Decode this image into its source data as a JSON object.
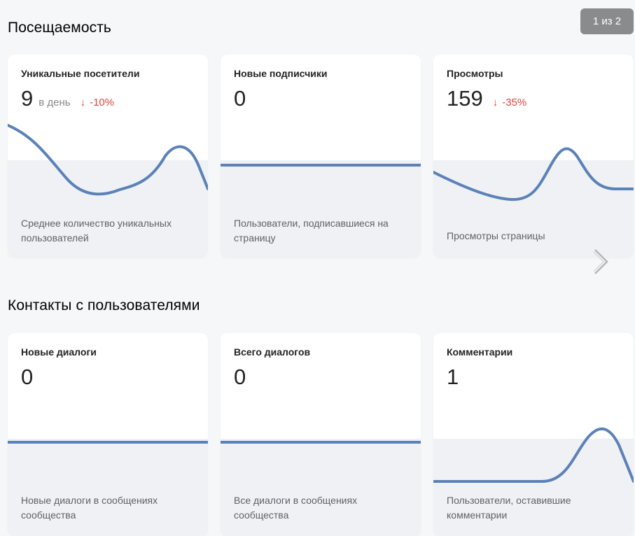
{
  "pager": {
    "text": "1 из 2"
  },
  "sections": [
    {
      "title": "Посещаемость",
      "cards": [
        {
          "label": "Уникальные посетители",
          "value": "9",
          "unit": "в день",
          "change": "-10%",
          "description": "Среднее количество уникальных пользователей"
        },
        {
          "label": "Новые подписчики",
          "value": "0",
          "description": "Пользователи, подписавшиеся на страницу"
        },
        {
          "label": "Просмотры",
          "value": "159",
          "change": "-35%",
          "description": "Просмотры страницы"
        }
      ]
    },
    {
      "title": "Контакты с пользователями",
      "cards": [
        {
          "label": "Новые диалоги",
          "value": "0",
          "description": "Новые диалоги в сообщениях сообщества"
        },
        {
          "label": "Всего диалогов",
          "value": "0",
          "description": "Все диалоги в сообщениях сообщества"
        },
        {
          "label": "Комментарии",
          "value": "1",
          "description": "Пользователи, оставившие комментарии"
        }
      ]
    }
  ],
  "icons": {
    "change_arrow": "arrow-down-icon",
    "next": "chevron-right-icon"
  },
  "colors": {
    "line": "#5b82b8",
    "negative": "#d9473e",
    "band": "#f0f1f4",
    "pager_bg": "#8a8b8d"
  }
}
